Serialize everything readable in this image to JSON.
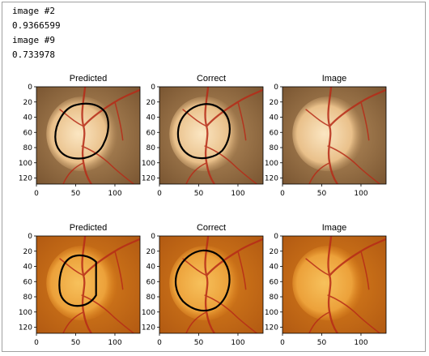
{
  "output_lines": [
    "image #2",
    "0.9366599",
    "image #9",
    "0.733978"
  ],
  "figures": [
    {
      "titles": [
        "Predicted",
        "Correct",
        "Image"
      ],
      "y_ticks": [
        "0",
        "20",
        "40",
        "60",
        "80",
        "100",
        "120"
      ],
      "x_ticks": [
        "0",
        "50",
        "100"
      ],
      "fundus": {
        "bg_outer": "#7a5632",
        "bg_inner": "#b88f5e",
        "disc_outer": "#e9c08a",
        "disc_inner": "#fbe6c2"
      }
    },
    {
      "titles": [
        "Predicted",
        "Correct",
        "Image"
      ],
      "y_ticks": [
        "0",
        "20",
        "40",
        "60",
        "80",
        "100",
        "120"
      ],
      "x_ticks": [
        "0",
        "50",
        "100"
      ],
      "fundus": {
        "bg_outer": "#b25a12",
        "bg_inner": "#d97f1c",
        "disc_outer": "#eca13a",
        "disc_inner": "#f7c15c"
      }
    }
  ],
  "colors": {
    "vessel": "#b72b18",
    "contour": "#000000",
    "frame_border": "#a0a0a0"
  }
}
